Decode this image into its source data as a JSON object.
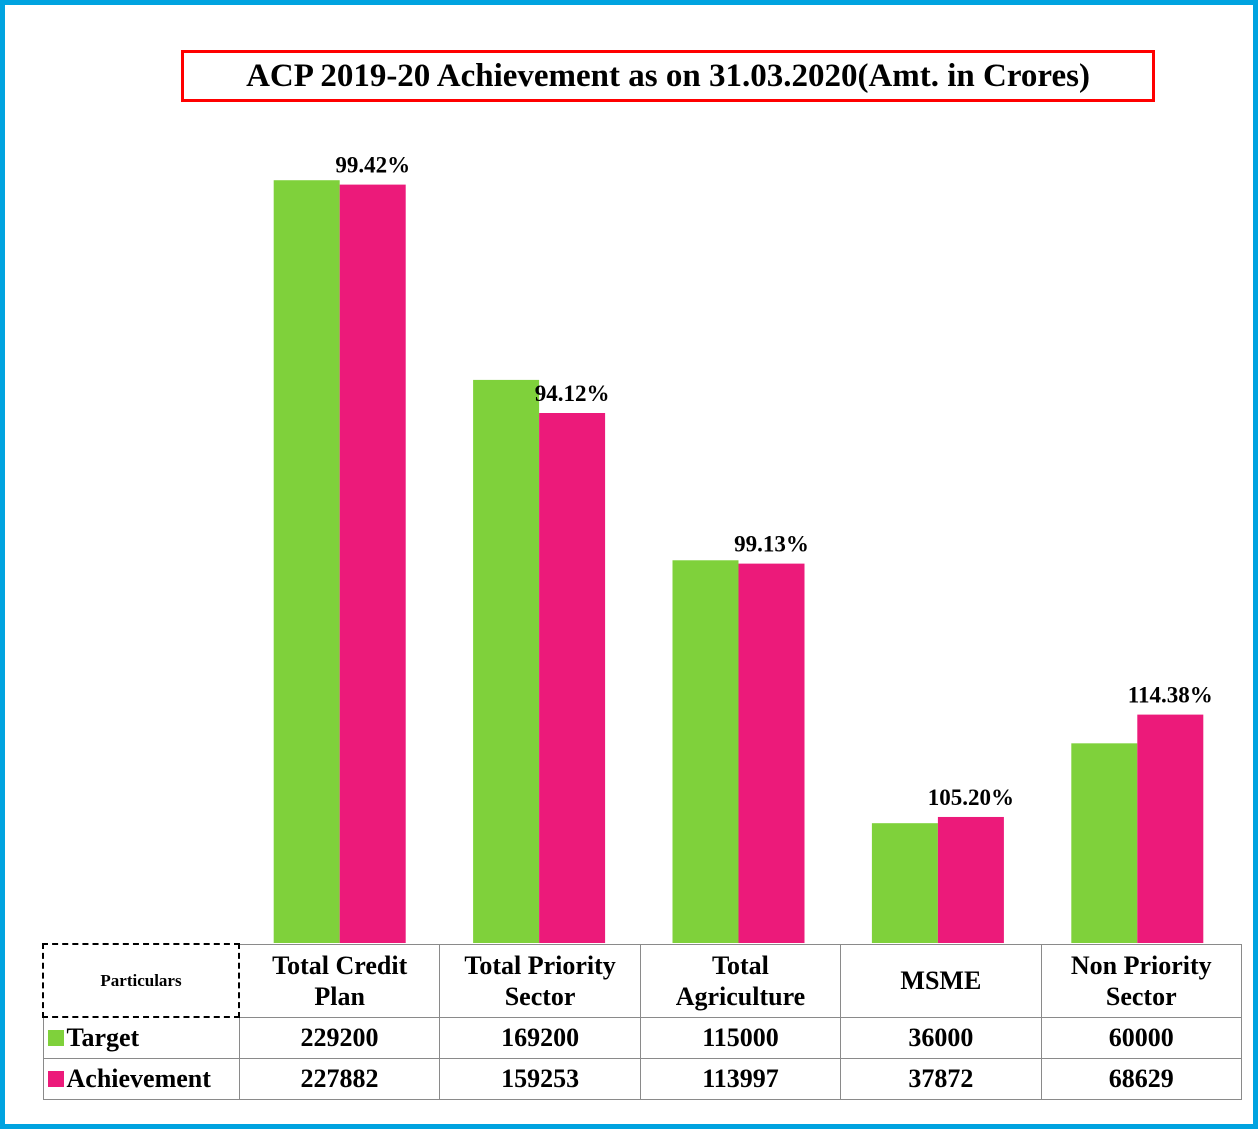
{
  "chart_data": {
    "type": "bar",
    "title": "ACP 2019-20 Achievement as on 31.03.2020(Amt. in Crores)",
    "table_header": "Particulars",
    "categories": [
      "Total Credit Plan",
      "Total Priority Sector",
      "Total Agriculture",
      "MSME",
      "Non Priority Sector"
    ],
    "series": [
      {
        "name": "Target",
        "color": "#7fd13b",
        "values": [
          229200,
          169200,
          115000,
          36000,
          60000
        ]
      },
      {
        "name": "Achievement",
        "color": "#ec1a7a",
        "values": [
          227882,
          159253,
          113997,
          37872,
          68629
        ]
      }
    ],
    "annotations": [
      "99.42%",
      "94.12%",
      "99.13%",
      "105.20%",
      "114.38%"
    ],
    "ylim": [
      0,
      250000
    ]
  }
}
